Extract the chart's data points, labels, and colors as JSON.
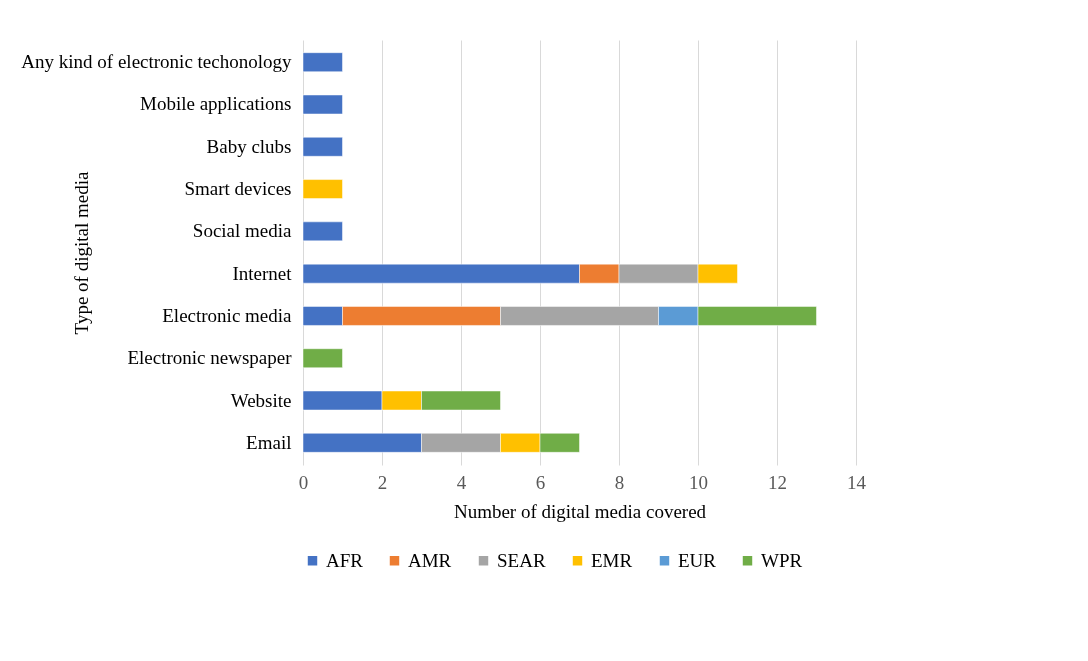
{
  "chart_data": {
    "type": "bar",
    "orientation": "horizontal",
    "stacked": true,
    "xlabel": "Number of digital  media covered",
    "ylabel": "Type of digital media",
    "categories": [
      "Any kind of electronic techonology",
      "Mobile applications",
      "Baby clubs",
      "Smart devices",
      "Social media",
      "Internet",
      "Electronic media",
      "Electronic newspaper",
      "Website",
      "Email"
    ],
    "series": [
      {
        "name": "AFR",
        "color": "#4472c4",
        "values": [
          1,
          1,
          1,
          null,
          1,
          7,
          1,
          null,
          2,
          3
        ]
      },
      {
        "name": "AMR",
        "color": "#ed7d31",
        "values": [
          null,
          null,
          null,
          null,
          null,
          1,
          4,
          null,
          null,
          null
        ]
      },
      {
        "name": "SEAR",
        "color": "#a5a5a5",
        "values": [
          null,
          null,
          null,
          null,
          null,
          2,
          4,
          null,
          null,
          2
        ]
      },
      {
        "name": "EMR",
        "color": "#ffc000",
        "values": [
          null,
          null,
          null,
          1,
          null,
          1,
          null,
          null,
          1,
          1
        ]
      },
      {
        "name": "EUR",
        "color": "#5b9bd5",
        "values": [
          null,
          null,
          null,
          null,
          null,
          null,
          1,
          null,
          null,
          null
        ]
      },
      {
        "name": "WPR",
        "color": "#70ad47",
        "values": [
          null,
          null,
          null,
          null,
          null,
          null,
          3,
          1,
          2,
          1
        ]
      }
    ],
    "xlim": [
      0,
      14
    ],
    "xticks": [
      0,
      2,
      4,
      6,
      8,
      10,
      12,
      14
    ],
    "grid": "x",
    "legend": "bottom"
  }
}
